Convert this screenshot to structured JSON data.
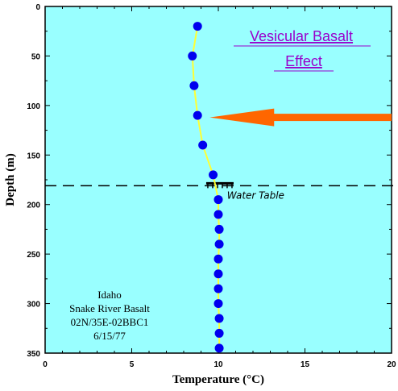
{
  "chart_data": {
    "type": "scatter",
    "xlabel": "Temperature (°C)",
    "ylabel": "Depth (m)",
    "xlim": [
      0,
      20
    ],
    "ylim": [
      350,
      0
    ],
    "y_inverted": true,
    "x_ticks": [
      "0",
      "5",
      "10",
      "15",
      "20"
    ],
    "y_ticks": [
      "0",
      "50",
      "100",
      "150",
      "200",
      "250",
      "300",
      "350"
    ],
    "grid": false,
    "plot_background": "#99ffff",
    "series": [
      {
        "marker_color": "#0000ee",
        "line_color": "#ffff33",
        "points": [
          {
            "x": 8.8,
            "y": 20
          },
          {
            "x": 8.5,
            "y": 50
          },
          {
            "x": 8.6,
            "y": 80
          },
          {
            "x": 8.8,
            "y": 110
          },
          {
            "x": 9.1,
            "y": 140
          },
          {
            "x": 9.7,
            "y": 170
          },
          {
            "x": 10.0,
            "y": 195
          },
          {
            "x": 10.0,
            "y": 210
          },
          {
            "x": 10.05,
            "y": 225
          },
          {
            "x": 10.05,
            "y": 240
          },
          {
            "x": 10.0,
            "y": 255
          },
          {
            "x": 10.0,
            "y": 270
          },
          {
            "x": 10.0,
            "y": 285
          },
          {
            "x": 10.0,
            "y": 300
          },
          {
            "x": 10.05,
            "y": 315
          },
          {
            "x": 10.05,
            "y": 330
          },
          {
            "x": 10.05,
            "y": 345
          }
        ]
      }
    ],
    "water_table": {
      "label": "Water Table",
      "depth": 181
    },
    "callout": {
      "line1": "Vesicular Basalt",
      "line2": "Effect",
      "color": "#9900cc"
    },
    "arrow": {
      "color": "#ff6600",
      "depth": 112,
      "tip_x": 9.5
    },
    "annotation_lines": [
      "Idaho",
      "Snake River Basalt",
      "02N/35E-02BBC1",
      "6/15/77"
    ]
  }
}
